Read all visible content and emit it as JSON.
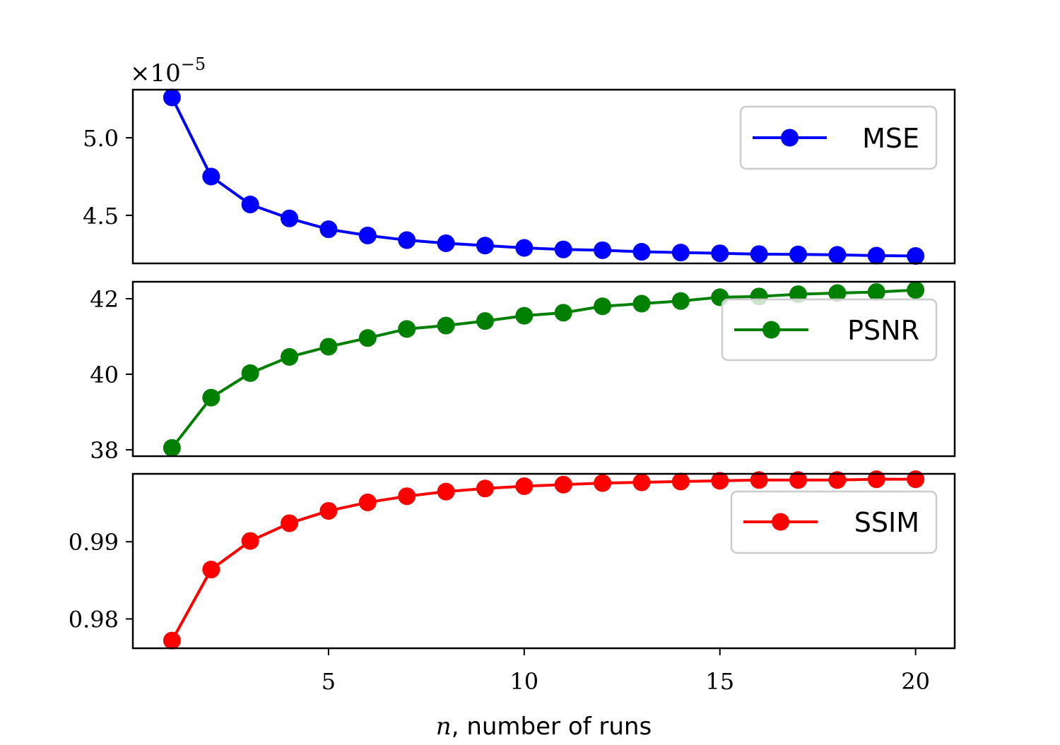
{
  "chart_data": {
    "type": "line",
    "xlabel": "n, number of runs",
    "xlabel_var": "n",
    "xlabel_rest": ", number of runs",
    "x": [
      1,
      2,
      3,
      4,
      5,
      6,
      7,
      8,
      9,
      10,
      11,
      12,
      13,
      14,
      15,
      16,
      17,
      18,
      19,
      20
    ],
    "xlim": [
      0,
      21
    ],
    "xticks": [
      5,
      10,
      15,
      20
    ],
    "grid": false,
    "legend_placement": "right",
    "panels": [
      {
        "series": [
          {
            "name": "MSE",
            "color": "#0000ff",
            "values": [
              5.26,
              4.75,
              4.57,
              4.48,
              4.41,
              4.37,
              4.34,
              4.32,
              4.305,
              4.29,
              4.28,
              4.275,
              4.265,
              4.26,
              4.255,
              4.25,
              4.248,
              4.245,
              4.24,
              4.238
            ]
          }
        ],
        "ylim": [
          4.19,
          5.31
        ],
        "yticks": [
          4.5,
          5.0
        ],
        "ytick_labels": [
          "4.5",
          "5.0"
        ],
        "offset_text": "×10",
        "offset_exponent": "−5",
        "legend_placement": "upper right"
      },
      {
        "series": [
          {
            "name": "PSNR",
            "color": "#008000",
            "values": [
              38.05,
              39.38,
              40.03,
              40.46,
              40.73,
              40.96,
              41.2,
              41.29,
              41.41,
              41.55,
              41.63,
              41.8,
              41.87,
              41.94,
              42.04,
              42.06,
              42.12,
              42.15,
              42.18,
              42.23
            ]
          }
        ],
        "ylim": [
          37.83,
          42.45
        ],
        "yticks": [
          38,
          40,
          42
        ],
        "ytick_labels": [
          "38",
          "40",
          "42"
        ],
        "legend_placement": "center right"
      },
      {
        "series": [
          {
            "name": "SSIM",
            "color": "#ff0000",
            "values": [
              0.9772,
              0.9864,
              0.9901,
              0.9924,
              0.994,
              0.9951,
              0.9959,
              0.9965,
              0.9969,
              0.9972,
              0.9974,
              0.9976,
              0.9977,
              0.9978,
              0.9979,
              0.998,
              0.998,
              0.998,
              0.9981,
              0.9981
            ]
          }
        ],
        "ylim": [
          0.9762,
          0.9988
        ],
        "yticks": [
          0.98,
          0.99
        ],
        "ytick_labels": [
          "0.98",
          "0.99"
        ],
        "legend_placement": "right"
      }
    ]
  }
}
